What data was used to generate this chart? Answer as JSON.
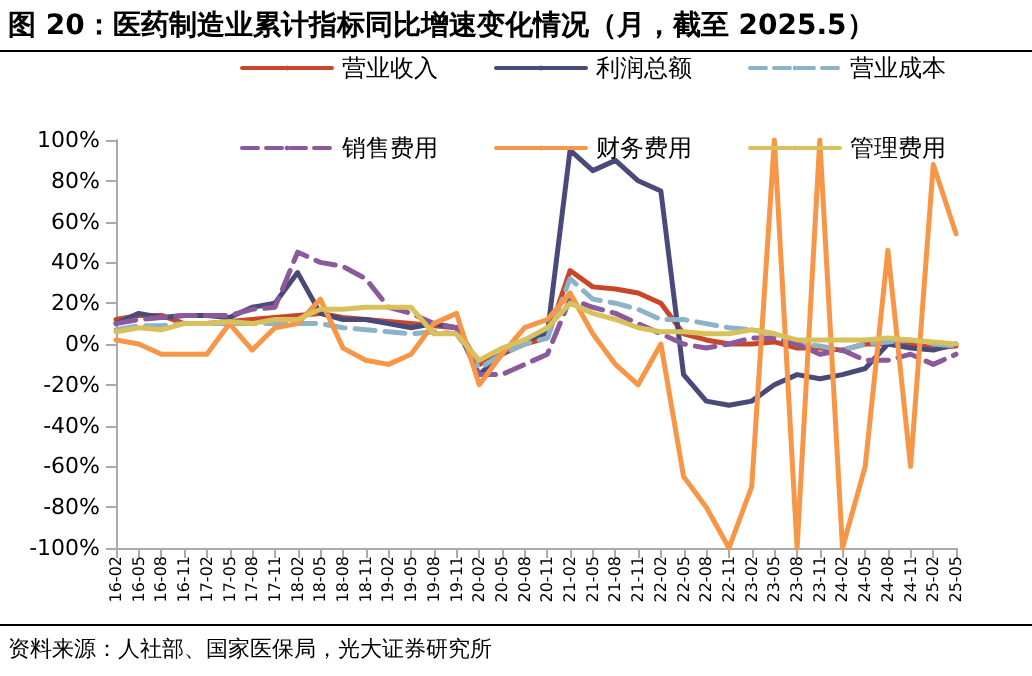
{
  "chart_data": {
    "type": "line",
    "title": "图 20：医药制造业累计指标同比增速变化情况（月，截至 2025.5）",
    "categories": [
      "16-02",
      "16-05",
      "16-08",
      "16-11",
      "17-02",
      "17-05",
      "17-08",
      "17-11",
      "18-02",
      "18-05",
      "18-08",
      "18-11",
      "19-02",
      "19-05",
      "19-08",
      "19-11",
      "20-02",
      "20-05",
      "20-08",
      "20-11",
      "21-02",
      "21-05",
      "21-08",
      "21-11",
      "22-02",
      "22-05",
      "22-08",
      "22-11",
      "23-02",
      "23-05",
      "23-08",
      "23-11",
      "24-02",
      "24-05",
      "24-08",
      "24-11",
      "25-02",
      "25-05"
    ],
    "series": [
      {
        "name": "营业收入",
        "color": "#c8472b",
        "values": [
          12,
          14,
          14,
          10,
          10,
          11,
          12,
          13,
          14,
          15,
          13,
          12,
          11,
          10,
          9,
          8,
          -10,
          -5,
          0,
          3,
          36,
          28,
          27,
          25,
          20,
          5,
          2,
          0,
          0,
          1,
          -2,
          -2,
          -3,
          0,
          0,
          0,
          -2,
          -1
        ]
      },
      {
        "name": "利润总额",
        "color": "#4a4a7a",
        "values": [
          10,
          15,
          13,
          14,
          14,
          13,
          18,
          20,
          35,
          15,
          12,
          12,
          10,
          8,
          10,
          8,
          -15,
          -5,
          2,
          5,
          95,
          85,
          90,
          80,
          75,
          -15,
          -28,
          -30,
          -28,
          -20,
          -15,
          -17,
          -15,
          -12,
          0,
          -2,
          -3,
          0
        ]
      },
      {
        "name": "营业成本",
        "color": "#8db3c9",
        "line_style": "dashed",
        "values": [
          7,
          9,
          9,
          10,
          10,
          10,
          10,
          10,
          10,
          10,
          8,
          7,
          6,
          5,
          6,
          5,
          -12,
          -5,
          0,
          3,
          32,
          22,
          20,
          17,
          12,
          12,
          10,
          8,
          7,
          5,
          0,
          -1,
          -3,
          0,
          1,
          2,
          0,
          -1
        ]
      },
      {
        "name": "销售费用",
        "color": "#8a5a9b",
        "line_style": "dashed",
        "values": [
          10,
          12,
          13,
          14,
          14,
          14,
          17,
          18,
          45,
          40,
          38,
          32,
          18,
          15,
          10,
          8,
          -15,
          -15,
          -10,
          -5,
          22,
          18,
          15,
          10,
          5,
          0,
          -2,
          0,
          3,
          3,
          0,
          -5,
          -3,
          -8,
          -8,
          -5,
          -10,
          -5
        ]
      },
      {
        "name": "财务费用",
        "color": "#f79646",
        "values": [
          2,
          0,
          -5,
          -5,
          -5,
          10,
          -3,
          8,
          10,
          22,
          -2,
          -8,
          -10,
          -5,
          10,
          15,
          -20,
          -5,
          8,
          12,
          25,
          5,
          -10,
          -20,
          0,
          -65,
          -80,
          -100,
          -70,
          100,
          -100,
          100,
          -100,
          -60,
          46,
          -60,
          88,
          54
        ]
      },
      {
        "name": "管理费用",
        "color": "#d8c15a",
        "values": [
          6,
          8,
          7,
          10,
          10,
          11,
          10,
          12,
          12,
          17,
          17,
          18,
          18,
          18,
          5,
          5,
          -8,
          -2,
          2,
          8,
          20,
          15,
          12,
          8,
          6,
          6,
          5,
          5,
          7,
          5,
          2,
          2,
          2,
          2,
          3,
          2,
          1,
          0
        ]
      }
    ],
    "ylim": [
      -100,
      100
    ],
    "yticks": [
      {
        "value": -100,
        "label": "-100%"
      },
      {
        "value": -80,
        "label": "-80%"
      },
      {
        "value": -60,
        "label": "-60%"
      },
      {
        "value": -40,
        "label": "-40%"
      },
      {
        "value": -20,
        "label": "-20%"
      },
      {
        "value": 0,
        "label": "0%"
      },
      {
        "value": 20,
        "label": "20%"
      },
      {
        "value": 40,
        "label": "40%"
      },
      {
        "value": 60,
        "label": "60%"
      },
      {
        "value": 80,
        "label": "80%"
      },
      {
        "value": 100,
        "label": "100%"
      }
    ],
    "grid": false,
    "legend": "top",
    "marker": "none",
    "line_style": "solid",
    "annotations": [
      "资料来源：人社部、国家医保局，光大证券研究所"
    ]
  }
}
